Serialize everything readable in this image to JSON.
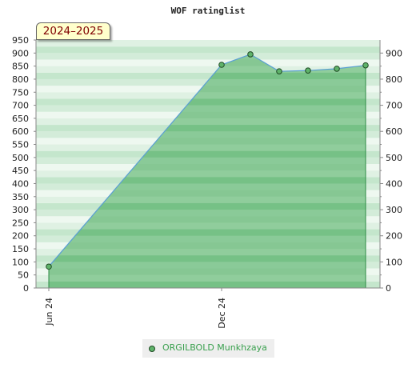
{
  "chart_data": {
    "type": "area",
    "title": "WOF ratinglist",
    "season_label": "2024–2025",
    "x_ticks": [
      "Jun 24",
      "Dec 24"
    ],
    "y_left_ticks": [
      "0",
      "50",
      "100",
      "150",
      "200",
      "250",
      "300",
      "350",
      "400",
      "450",
      "500",
      "550",
      "600",
      "650",
      "700",
      "750",
      "800",
      "850",
      "900",
      "950"
    ],
    "y_right_ticks": [
      "0",
      "100",
      "200",
      "300",
      "400",
      "500",
      "600",
      "700",
      "800",
      "900"
    ],
    "ylim": [
      0,
      950
    ],
    "grid": true,
    "legend_position": "bottom",
    "series": [
      {
        "name": "ORGILBOLD Munkhzaya",
        "x": [
          "2024-06",
          "2024-12",
          "2025-01",
          "2025-02",
          "2025-03",
          "2025-04",
          "2025-05"
        ],
        "values": [
          82,
          855,
          895,
          830,
          833,
          840,
          853
        ],
        "color": "#5fb36a"
      }
    ]
  }
}
